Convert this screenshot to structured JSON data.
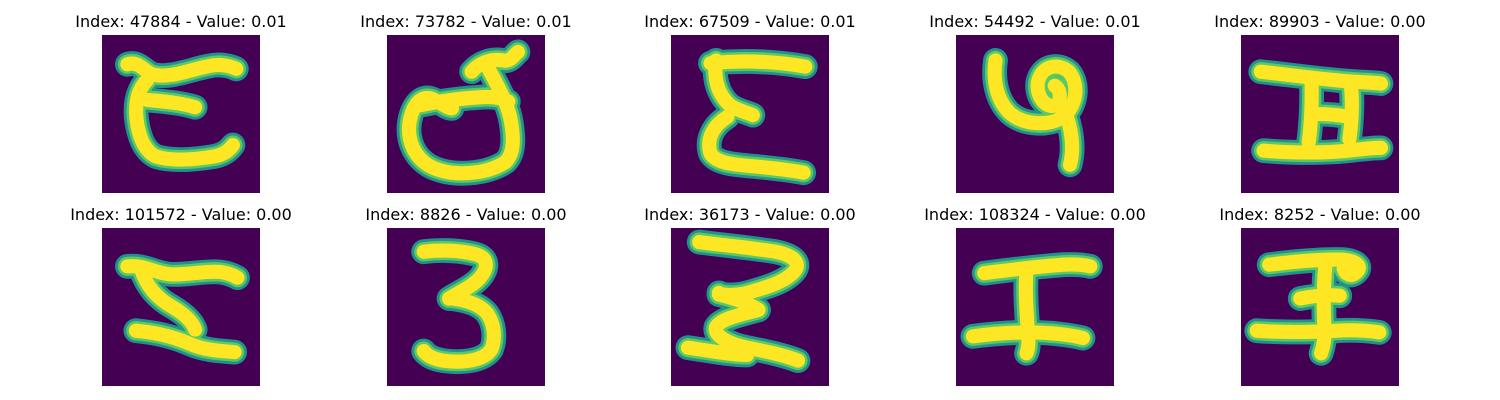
{
  "colors": {
    "background": "#440154",
    "stroke_core": "#fde725",
    "stroke_edge": "#21918c",
    "stroke_mid": "#5ec962"
  },
  "panels": [
    {
      "label": "Index: 47884 - Value: 0.01",
      "glyph": "lowercase-c-like character"
    },
    {
      "label": "Index: 73782 - Value: 0.01",
      "glyph": "lowercase-d-like character"
    },
    {
      "label": "Index: 67509 - Value: 0.01",
      "glyph": "uppercase-E-like character"
    },
    {
      "label": "Index: 54492 - Value: 0.01",
      "glyph": "six-like character"
    },
    {
      "label": "Index: 89903 - Value: 0.00",
      "glyph": "uppercase-H-like character"
    },
    {
      "label": "Index: 101572 - Value: 0.00",
      "glyph": "Z-like character"
    },
    {
      "label": "Index: 8826 - Value: 0.00",
      "glyph": "three-like character"
    },
    {
      "label": "Index: 36173 - Value: 0.00",
      "glyph": "three-like character"
    },
    {
      "label": "Index: 108324 - Value: 0.00",
      "glyph": "I-like character"
    },
    {
      "label": "Index: 8252 - Value: 0.00",
      "glyph": "I-like character"
    }
  ]
}
